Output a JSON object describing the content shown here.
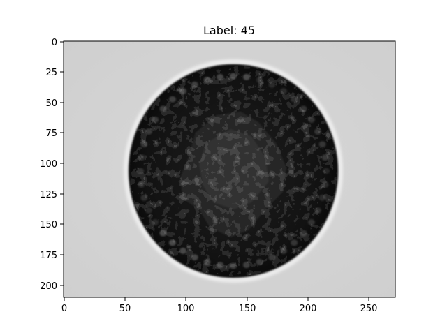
{
  "figure": {
    "title": "Label: 45"
  },
  "image": {
    "subject": "dark circular coin-like particle with beaded rim on light gray background",
    "background_color": "#d6d6d6",
    "object_color": "#141414"
  },
  "axes": {
    "x_ticks": [
      "0",
      "50",
      "100",
      "150",
      "200",
      "250"
    ],
    "y_ticks": [
      "0",
      "25",
      "50",
      "75",
      "100",
      "125",
      "150",
      "175",
      "200"
    ],
    "x_range": [
      0,
      271
    ],
    "y_range": [
      0,
      211
    ]
  }
}
